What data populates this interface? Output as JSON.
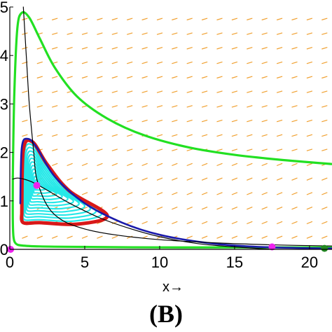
{
  "panel_label": "(B)",
  "chart_data": {
    "type": "line",
    "title": "",
    "xlabel": "x→",
    "ylabel": "",
    "xlim": [
      0,
      21.5
    ],
    "ylim": [
      0,
      5
    ],
    "x_ticks": [
      "0",
      "5",
      "10",
      "15",
      "20"
    ],
    "y_ticks": [
      "0",
      "1",
      "2",
      "3",
      "4",
      "5"
    ],
    "grid": false,
    "legend": "none",
    "colors": {
      "outer_trajectory": "#22e022",
      "limit_cycle": "#d81818",
      "inner_spiral": "#26e8e8",
      "separatrix": "#1a1aaa",
      "nullcline": "#000000",
      "equilibrium": "#ee22ee",
      "boundary_equilibrium": "#228822",
      "direction_field": "#f0a030"
    },
    "series": [
      {
        "id": "outer-trajectory",
        "x": [
          0.2,
          0.3,
          0.5,
          0.8,
          1.3,
          2.0,
          3.0,
          4.5,
          6.5,
          9.0,
          12.0,
          15.0,
          18.0,
          21.5
        ],
        "y": [
          1.5,
          3.2,
          4.55,
          4.88,
          4.78,
          4.35,
          3.75,
          3.15,
          2.7,
          2.35,
          2.1,
          1.95,
          1.85,
          1.76
        ]
      },
      {
        "id": "outer-trajectory-return",
        "x": [
          0.2,
          0.2,
          0.25,
          0.4,
          0.8,
          2.0,
          5.0,
          10.0,
          15.0,
          21.5
        ],
        "y": [
          1.5,
          0.6,
          0.25,
          0.12,
          0.08,
          0.06,
          0.05,
          0.04,
          0.04,
          0.04
        ]
      },
      {
        "id": "limit-cycle",
        "x": [
          0.8,
          0.9,
          1.5,
          2.5,
          4.0,
          6.5,
          4.5,
          2.0,
          0.9,
          0.8
        ],
        "y": [
          0.75,
          2.05,
          2.22,
          1.75,
          1.2,
          0.7,
          0.52,
          0.55,
          0.55,
          0.75
        ]
      },
      {
        "id": "separatrix",
        "x": [
          0.7,
          0.8,
          1.2,
          1.8,
          3.0,
          5.0,
          7.5,
          10.0,
          13.0,
          16.0,
          19.0,
          21.5
        ],
        "y": [
          0.95,
          2.1,
          2.28,
          2.1,
          1.5,
          0.95,
          0.55,
          0.3,
          0.14,
          0.06,
          0.03,
          0.02
        ]
      },
      {
        "id": "prey-nullcline",
        "x": [
          0.2,
          0.6,
          1.4,
          2.5,
          4.0,
          6.0,
          8.0,
          10.0,
          12.5,
          15.0,
          17.5
        ],
        "y": [
          1.45,
          1.47,
          1.4,
          1.22,
          0.95,
          0.65,
          0.43,
          0.26,
          0.12,
          0.05,
          0.0
        ]
      },
      {
        "id": "predator-nullcline",
        "x": [
          0.9,
          1.1,
          1.3,
          1.6,
          1.8,
          2.5,
          3.5,
          5.0,
          7.0,
          10.0,
          14.0,
          18.0,
          21.5
        ],
        "y": [
          5.0,
          4.0,
          3.0,
          2.0,
          1.45,
          0.9,
          0.6,
          0.42,
          0.3,
          0.2,
          0.13,
          0.09,
          0.07
        ]
      }
    ],
    "equilibria": [
      {
        "id": "interior",
        "x": 1.8,
        "y": 1.32,
        "color": "magenta"
      },
      {
        "id": "origin",
        "x": 0.05,
        "y": 0.0,
        "color": "magenta"
      },
      {
        "id": "prey-only",
        "x": 17.5,
        "y": 0.05,
        "color": "magenta"
      },
      {
        "id": "boundary",
        "x": 21.0,
        "y": 0.02,
        "color": "green"
      }
    ],
    "spiral_center": {
      "x": 1.8,
      "y": 1.32
    },
    "spiral_turns": 11
  }
}
